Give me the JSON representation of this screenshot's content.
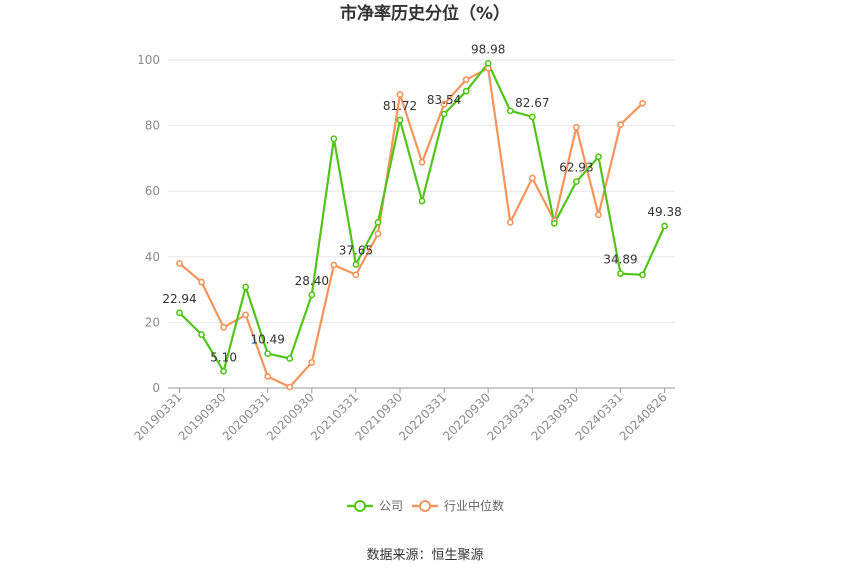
{
  "chart_data": {
    "type": "line",
    "title": "市净率历史分位（%）",
    "source": "数据来源：恒生聚源",
    "ylim": [
      0,
      100
    ],
    "yticks": [
      0,
      20,
      40,
      60,
      80,
      100
    ],
    "grid": true,
    "legend_position": "bottom",
    "x_tick_labels": [
      "20190331",
      "20190930",
      "20200331",
      "20200930",
      "20210331",
      "20210930",
      "20220331",
      "20220930",
      "20230331",
      "20230930",
      "20240331",
      "20240826"
    ],
    "x_tick_positions": [
      0,
      2,
      4,
      6,
      8,
      10,
      12,
      14,
      16,
      18,
      20,
      22
    ],
    "series": [
      {
        "name": "公司",
        "color": "#52c41a",
        "values": [
          22.94,
          16.3,
          5.1,
          30.8,
          10.49,
          9.0,
          28.4,
          76.0,
          37.65,
          50.5,
          81.72,
          57.0,
          83.54,
          90.5,
          98.98,
          84.5,
          82.67,
          50.2,
          62.93,
          70.5,
          34.89,
          34.5,
          49.38
        ]
      },
      {
        "name": "行业中位数",
        "color": "#f5955b",
        "values": [
          38.0,
          32.3,
          18.5,
          22.3,
          3.5,
          0.3,
          7.8,
          37.5,
          34.5,
          47.0,
          89.5,
          68.8,
          86.5,
          94.0,
          97.5,
          50.5,
          64.0,
          51.0,
          79.5,
          52.8,
          80.3,
          86.8,
          null
        ]
      }
    ],
    "data_labels": [
      {
        "index": 0,
        "text": "22.94"
      },
      {
        "index": 2,
        "text": "5.10"
      },
      {
        "index": 4,
        "text": "10.49"
      },
      {
        "index": 6,
        "text": "28.40"
      },
      {
        "index": 8,
        "text": "37.65"
      },
      {
        "index": 10,
        "text": "81.72"
      },
      {
        "index": 12,
        "text": "83.54"
      },
      {
        "index": 14,
        "text": "98.98"
      },
      {
        "index": 16,
        "text": "82.67"
      },
      {
        "index": 18,
        "text": "62.93"
      },
      {
        "index": 20,
        "text": "34.89"
      },
      {
        "index": 22,
        "text": "49.38"
      }
    ]
  }
}
